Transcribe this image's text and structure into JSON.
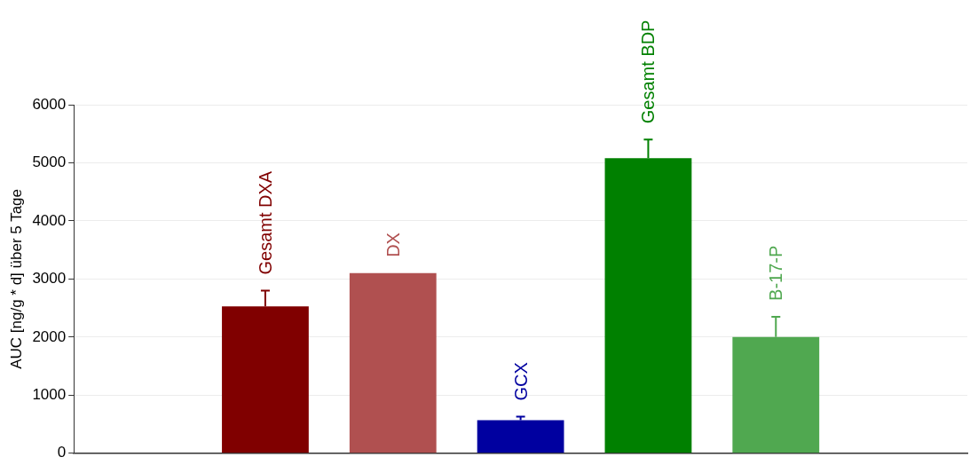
{
  "chart_data": {
    "type": "bar",
    "ylabel": "AUC [ng/g * d] über 5 Tage",
    "categories": [
      null,
      "Gesamt DXA",
      "DX",
      "GCX",
      "Gesamt BDP",
      "B-17-P",
      null
    ],
    "values": [
      null,
      2530,
      3100,
      570,
      5080,
      2000,
      null
    ],
    "colors": [
      "#800000",
      "#800000",
      "#b05050",
      "#0000a0",
      "#008000",
      "#50a850",
      "#008000"
    ],
    "errors": [
      null,
      [
        2530,
        2800
      ],
      null,
      [
        570,
        630
      ],
      [
        5080,
        5400
      ],
      [
        2000,
        2350
      ],
      null
    ],
    "ylim": [
      0,
      6000
    ],
    "yticks": [
      0,
      1000,
      2000,
      3000,
      4000,
      5000,
      6000
    ],
    "grid": "y",
    "legend": false
  }
}
